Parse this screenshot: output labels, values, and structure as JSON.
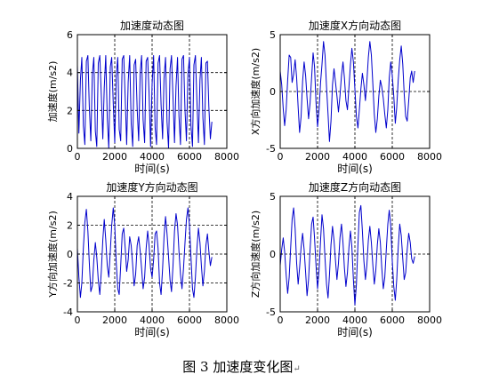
{
  "figure_caption": "图 3  加速度变化图",
  "caption_mark": "↵",
  "colors": {
    "trace": "#0000cc",
    "axis": "#000000",
    "grid": "#000000",
    "background": "#ffffff"
  },
  "chart_data": [
    {
      "type": "line",
      "title": "加速度动态图",
      "xlabel": "时间(s)",
      "ylabel": "加速度(m/s2)",
      "xlim": [
        0,
        8000
      ],
      "ylim": [
        0,
        6
      ],
      "xticks": [
        0,
        2000,
        4000,
        6000,
        8000
      ],
      "yticks": [
        0,
        2,
        4,
        6
      ],
      "grid": "dashed at 2000, 4000, 6000 and y=2, 4",
      "series": [
        {
          "x": [
            0,
            80,
            160,
            240,
            320,
            400,
            480,
            560,
            640,
            720,
            800,
            880,
            960,
            1040,
            1120,
            1200,
            1280,
            1360,
            1440,
            1520,
            1600,
            1680,
            1760,
            1840,
            1920,
            2000,
            2080,
            2160,
            2240,
            2320,
            2400,
            2480,
            2560,
            2640,
            2720,
            2800,
            2880,
            2960,
            3040,
            3120,
            3200,
            3280,
            3360,
            3440,
            3520,
            3600,
            3680,
            3760,
            3840,
            3920,
            4000,
            4080,
            4160,
            4240,
            4320,
            4400,
            4480,
            4560,
            4640,
            4720,
            4800,
            4880,
            4960,
            5040,
            5120,
            5200,
            5280,
            5360,
            5440,
            5520,
            5600,
            5680,
            5760,
            5840,
            5920,
            6000,
            6080,
            6160,
            6240,
            6320,
            6400,
            6480,
            6560,
            6640,
            6720,
            6800,
            6880,
            6960,
            7040,
            7120,
            7200
          ],
          "y": [
            4.4,
            0.8,
            3.6,
            4.8,
            1.2,
            0.2,
            4.6,
            4.9,
            2.2,
            0.4,
            3.9,
            4.8,
            0.9,
            0.1,
            4.5,
            4.9,
            2.8,
            0.5,
            3.2,
            4.9,
            1.6,
            0.0,
            4.3,
            4.8,
            2.4,
            0.3,
            3.8,
            4.8,
            1.0,
            0.4,
            4.7,
            4.9,
            2.6,
            0.2,
            3.5,
            4.9,
            1.3,
            0.1,
            4.4,
            4.7,
            2.1,
            0.4,
            4.0,
            4.9,
            1.5,
            0.3,
            4.6,
            4.8,
            2.9,
            0.1,
            3.4,
            4.9,
            1.1,
            0.2,
            4.5,
            4.9,
            2.3,
            0.5,
            3.7,
            4.8,
            1.4,
            0.0,
            4.2,
            4.9,
            2.7,
            0.3,
            3.3,
            4.8,
            1.7,
            0.2,
            4.7,
            4.9,
            2.0,
            0.4,
            3.9,
            4.8,
            1.2,
            0.1,
            4.4,
            4.9,
            2.5,
            0.3,
            3.6,
            4.8,
            1.6,
            0.2,
            4.5,
            4.6,
            2.2,
            0.5,
            1.4
          ]
        }
      ]
    },
    {
      "type": "line",
      "title": "加速度X方向动态图",
      "xlabel": "时间(s)",
      "ylabel": "X方向加速度(m/s2)",
      "xlim": [
        0,
        8000
      ],
      "ylim": [
        -5,
        5
      ],
      "xticks": [
        0,
        2000,
        4000,
        6000,
        8000
      ],
      "yticks": [
        -5,
        0,
        5
      ],
      "grid": "dashed at 2000, 4000, 6000 and y=0",
      "series": [
        {
          "x": [
            0,
            80,
            160,
            240,
            320,
            400,
            480,
            560,
            640,
            720,
            800,
            880,
            960,
            1040,
            1120,
            1200,
            1280,
            1360,
            1440,
            1520,
            1600,
            1680,
            1760,
            1840,
            1920,
            2000,
            2080,
            2160,
            2240,
            2320,
            2400,
            2480,
            2560,
            2640,
            2720,
            2800,
            2880,
            2960,
            3040,
            3120,
            3200,
            3280,
            3360,
            3440,
            3520,
            3600,
            3680,
            3760,
            3840,
            3920,
            4000,
            4080,
            4160,
            4240,
            4320,
            4400,
            4480,
            4560,
            4640,
            4720,
            4800,
            4880,
            4960,
            5040,
            5120,
            5200,
            5280,
            5360,
            5440,
            5520,
            5600,
            5680,
            5760,
            5840,
            5920,
            6000,
            6080,
            6160,
            6240,
            6320,
            6400,
            6480,
            6560,
            6640,
            6720,
            6800,
            6880,
            6960,
            7040,
            7120,
            7200
          ],
          "y": [
            1.8,
            0.6,
            -1.5,
            -3.0,
            -1.6,
            1.0,
            3.2,
            3.0,
            0.8,
            1.5,
            2.8,
            1.2,
            -1.4,
            -3.6,
            -2.2,
            0.9,
            2.6,
            1.4,
            -0.6,
            -2.4,
            -1.0,
            1.2,
            3.4,
            2.2,
            -1.0,
            -3.1,
            -1.6,
            0.8,
            2.4,
            4.4,
            3.2,
            0.4,
            -2.0,
            -4.4,
            -2.6,
            0.6,
            2.0,
            0.8,
            -0.4,
            -1.8,
            -0.4,
            1.4,
            2.6,
            1.2,
            -0.8,
            -1.6,
            0.4,
            2.4,
            3.8,
            2.6,
            0.2,
            -2.2,
            -3.2,
            -1.6,
            0.2,
            1.6,
            0.6,
            -0.8,
            0.8,
            3.0,
            4.4,
            3.2,
            0.6,
            -2.0,
            -3.6,
            -2.4,
            -0.4,
            1.0,
            0.4,
            -0.6,
            -2.0,
            -3.2,
            -1.6,
            1.2,
            2.6,
            1.4,
            -0.4,
            -2.8,
            -1.4,
            1.0,
            2.8,
            4.0,
            2.4,
            -0.2,
            -2.2,
            -2.6,
            -0.8,
            1.2,
            1.8,
            0.8,
            1.8
          ]
        }
      ]
    },
    {
      "type": "line",
      "title": "加速度Y方向动态图",
      "xlabel": "时间(s)",
      "ylabel": "Y方向加速度(m/s2)",
      "xlim": [
        0,
        8000
      ],
      "ylim": [
        -4,
        4
      ],
      "xticks": [
        0,
        2000,
        4000,
        6000,
        8000
      ],
      "yticks": [
        -4,
        -2,
        0,
        2,
        4
      ],
      "grid": "dashed at 2000, 4000, 6000 and y=-2, 0, 2",
      "series": [
        {
          "x": [
            0,
            80,
            160,
            240,
            320,
            400,
            480,
            560,
            640,
            720,
            800,
            880,
            960,
            1040,
            1120,
            1200,
            1280,
            1360,
            1440,
            1520,
            1600,
            1680,
            1760,
            1840,
            1920,
            2000,
            2080,
            2160,
            2240,
            2320,
            2400,
            2480,
            2560,
            2640,
            2720,
            2800,
            2880,
            2960,
            3040,
            3120,
            3200,
            3280,
            3360,
            3440,
            3520,
            3600,
            3680,
            3760,
            3840,
            3920,
            4000,
            4080,
            4160,
            4240,
            4320,
            4400,
            4480,
            4560,
            4640,
            4720,
            4800,
            4880,
            4960,
            5040,
            5120,
            5200,
            5280,
            5360,
            5440,
            5520,
            5600,
            5680,
            5760,
            5840,
            5920,
            6000,
            6080,
            6160,
            6240,
            6320,
            6400,
            6480,
            6560,
            6640,
            6720,
            6800,
            6880,
            6960,
            7040,
            7120,
            7200
          ],
          "y": [
            0.4,
            -1.6,
            -3.0,
            -2.0,
            0.4,
            2.2,
            3.1,
            1.6,
            -0.6,
            -2.6,
            -2.2,
            -0.4,
            0.8,
            -0.2,
            -1.8,
            -2.8,
            -1.2,
            1.0,
            2.4,
            1.0,
            -0.8,
            -1.6,
            0.2,
            2.0,
            3.2,
            2.0,
            -0.6,
            -2.4,
            -2.8,
            -0.8,
            1.4,
            1.8,
            0.4,
            -1.2,
            -0.4,
            1.2,
            0.6,
            -0.8,
            -2.2,
            -1.4,
            0.6,
            1.2,
            0.2,
            -1.0,
            -2.4,
            -1.6,
            0.4,
            1.6,
            0.6,
            -1.0,
            -1.6,
            -0.4,
            1.4,
            1.6,
            0.4,
            -2.0,
            -2.8,
            -1.0,
            1.2,
            2.6,
            1.4,
            -0.2,
            -1.8,
            -2.6,
            -0.8,
            1.6,
            2.8,
            2.0,
            0.2,
            -1.4,
            -2.4,
            -1.0,
            0.8,
            2.4,
            3.2,
            2.0,
            -0.2,
            -2.4,
            -3.0,
            -1.6,
            0.4,
            1.8,
            0.8,
            -0.8,
            -2.2,
            -1.2,
            0.6,
            1.4,
            0.2,
            -0.8,
            -0.2
          ]
        }
      ]
    },
    {
      "type": "line",
      "title": "加速度Z方向动态图",
      "xlabel": "时间(s)",
      "ylabel": "Z方向加速度(m/s2)",
      "xlim": [
        0,
        8000
      ],
      "ylim": [
        -5,
        5
      ],
      "xticks": [
        0,
        2000,
        4000,
        6000,
        8000
      ],
      "yticks": [
        -5,
        0,
        5
      ],
      "grid": "dashed at 2000, 4000, 6000 and y=0",
      "series": [
        {
          "x": [
            0,
            80,
            160,
            240,
            320,
            400,
            480,
            560,
            640,
            720,
            800,
            880,
            960,
            1040,
            1120,
            1200,
            1280,
            1360,
            1440,
            1520,
            1600,
            1680,
            1760,
            1840,
            1920,
            2000,
            2080,
            2160,
            2240,
            2320,
            2400,
            2480,
            2560,
            2640,
            2720,
            2800,
            2880,
            2960,
            3040,
            3120,
            3200,
            3280,
            3360,
            3440,
            3520,
            3600,
            3680,
            3760,
            3840,
            3920,
            4000,
            4080,
            4160,
            4240,
            4320,
            4400,
            4480,
            4560,
            4640,
            4720,
            4800,
            4880,
            4960,
            5040,
            5120,
            5200,
            5280,
            5360,
            5440,
            5520,
            5600,
            5680,
            5760,
            5840,
            5920,
            6000,
            6080,
            6160,
            6240,
            6320,
            6400,
            6480,
            6560,
            6640,
            6720,
            6800,
            6880,
            6960,
            7040,
            7120,
            7200
          ],
          "y": [
            -1.0,
            0.4,
            1.4,
            0.2,
            -1.8,
            -3.4,
            -2.0,
            0.6,
            3.0,
            4.0,
            2.2,
            -0.8,
            -2.6,
            -1.2,
            0.6,
            1.8,
            0.4,
            -1.6,
            -3.6,
            -2.2,
            0.4,
            2.6,
            3.2,
            1.4,
            -1.0,
            -3.0,
            -1.4,
            1.2,
            3.4,
            2.2,
            -0.4,
            -2.6,
            -3.8,
            -1.8,
            0.8,
            2.4,
            1.2,
            -0.6,
            -2.2,
            -0.8,
            1.4,
            2.6,
            1.0,
            -1.2,
            -2.8,
            -1.6,
            0.6,
            2.0,
            0.6,
            -2.2,
            -4.4,
            -2.6,
            0.8,
            3.6,
            4.2,
            2.0,
            -0.6,
            -2.2,
            -1.0,
            1.2,
            2.4,
            1.0,
            -1.0,
            -2.6,
            -1.4,
            0.8,
            2.2,
            1.0,
            -1.2,
            -3.0,
            -2.0,
            0.4,
            2.6,
            3.8,
            2.4,
            -0.6,
            -2.8,
            -4.0,
            -2.2,
            0.6,
            2.6,
            1.6,
            -0.4,
            -2.2,
            -1.6,
            0.4,
            1.8,
            1.0,
            -0.4,
            -0.8,
            -0.2
          ]
        }
      ]
    }
  ]
}
